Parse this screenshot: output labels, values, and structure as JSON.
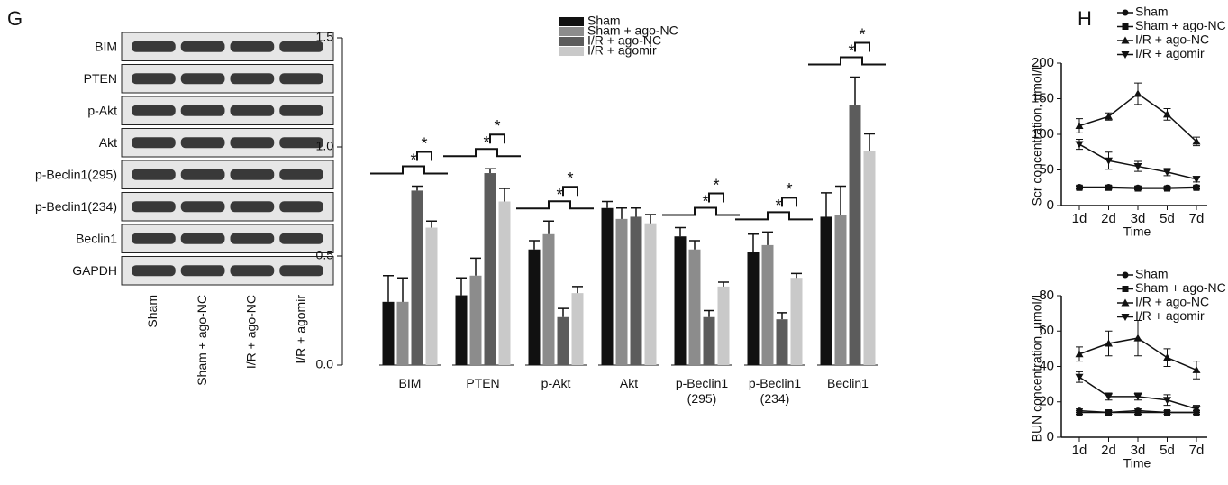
{
  "blot": {
    "panel_label": "G",
    "rows": [
      "BIM",
      "PTEN",
      "p-Akt",
      "Akt",
      "p-Beclin1(295)",
      "p-Beclin1(234)",
      "Beclin1",
      "GAPDH"
    ],
    "lanes": [
      "Sham",
      "Sham + ago-NC",
      "I/R + ago-NC",
      "I/R + agomir"
    ]
  },
  "chart_data": [
    {
      "type": "bar",
      "categories": [
        "BIM",
        "PTEN",
        "p-Akt",
        "Akt",
        "p-Beclin1\n(295)",
        "p-Beclin1\n(234)",
        "Beclin1"
      ],
      "ylim": [
        0,
        1.5
      ],
      "yticks": [
        {
          "value": 0,
          "label": "0.0"
        },
        {
          "value": 0.5,
          "label": "0.5"
        },
        {
          "value": 1,
          "label": "1.0"
        },
        {
          "value": 1.5,
          "label": "1.5"
        }
      ],
      "series": [
        {
          "name": "Sham",
          "color": "#111111",
          "values": [
            0.29,
            0.32,
            0.53,
            0.72,
            0.59,
            0.52,
            0.68
          ],
          "errors": [
            0.12,
            0.08,
            0.04,
            0.03,
            0.04,
            0.08,
            0.11
          ]
        },
        {
          "name": "Sham + ago-NC",
          "color": "#8c8c8c",
          "values": [
            0.29,
            0.41,
            0.6,
            0.67,
            0.53,
            0.55,
            0.69
          ],
          "errors": [
            0.11,
            0.08,
            0.06,
            0.05,
            0.04,
            0.06,
            0.13
          ]
        },
        {
          "name": "I/R + ago-NC",
          "color": "#5c5c5c",
          "values": [
            0.8,
            0.88,
            0.22,
            0.68,
            0.22,
            0.21,
            1.19
          ],
          "errors": [
            0.02,
            0.02,
            0.04,
            0.04,
            0.03,
            0.03,
            0.13
          ]
        },
        {
          "name": "I/R + agomir",
          "color": "#c9c9c9",
          "values": [
            0.63,
            0.75,
            0.33,
            0.65,
            0.36,
            0.4,
            0.98
          ],
          "errors": [
            0.03,
            0.06,
            0.03,
            0.04,
            0.02,
            0.02,
            0.08
          ]
        }
      ],
      "significance": [
        [
          "*",
          "*"
        ],
        [
          "*",
          "*"
        ],
        [
          "*",
          "*"
        ],
        null,
        [
          "*",
          "*"
        ],
        [
          "*",
          "*"
        ],
        [
          "*",
          "*"
        ]
      ]
    },
    {
      "type": "line",
      "panel_label": "H",
      "y_label": "Scr concentration, μmol/L",
      "x_label": "Time",
      "categories": [
        "1d",
        "2d",
        "3d",
        "5d",
        "7d"
      ],
      "ylim": [
        0,
        200
      ],
      "yticks": [
        0,
        50,
        100,
        150,
        200
      ],
      "series": [
        {
          "name": "Sham",
          "color": "#111111",
          "marker": "circle",
          "values": [
            26,
            26,
            25,
            25,
            26
          ],
          "errors": [
            2,
            2,
            2,
            2,
            2
          ]
        },
        {
          "name": "Sham + ago-NC",
          "color": "#111111",
          "marker": "square",
          "values": [
            25,
            25,
            24,
            24,
            25
          ],
          "errors": [
            2,
            2,
            2,
            2,
            2
          ]
        },
        {
          "name": "I/R + ago-NC",
          "color": "#111111",
          "marker": "triangle-up",
          "values": [
            112,
            125,
            157,
            128,
            90
          ],
          "errors": [
            10,
            5,
            15,
            8,
            6
          ]
        },
        {
          "name": "I/R + agomir",
          "color": "#111111",
          "marker": "triangle-down",
          "values": [
            86,
            63,
            55,
            47,
            37
          ],
          "errors": [
            7,
            12,
            7,
            5,
            4
          ]
        }
      ]
    },
    {
      "type": "line",
      "y_label": "BUN concentration, μmol/L",
      "x_label": "Time",
      "categories": [
        "1d",
        "2d",
        "3d",
        "5d",
        "7d"
      ],
      "ylim": [
        0,
        80
      ],
      "yticks": [
        0,
        20,
        40,
        60,
        80
      ],
      "series": [
        {
          "name": "Sham",
          "color": "#111111",
          "marker": "circle",
          "values": [
            15,
            14,
            15,
            14,
            14
          ],
          "errors": [
            1,
            1,
            1,
            1,
            1
          ]
        },
        {
          "name": "Sham + ago-NC",
          "color": "#111111",
          "marker": "square",
          "values": [
            14,
            14,
            14,
            14,
            14
          ],
          "errors": [
            1,
            1,
            1,
            1,
            1
          ]
        },
        {
          "name": "I/R + ago-NC",
          "color": "#111111",
          "marker": "triangle-up",
          "values": [
            47,
            53,
            56,
            45,
            38
          ],
          "errors": [
            4,
            7,
            10,
            5,
            5
          ]
        },
        {
          "name": "I/R + agomir",
          "color": "#111111",
          "marker": "triangle-down",
          "values": [
            34,
            23,
            23,
            21,
            16
          ],
          "errors": [
            3,
            2,
            2,
            3,
            2
          ]
        }
      ]
    }
  ]
}
